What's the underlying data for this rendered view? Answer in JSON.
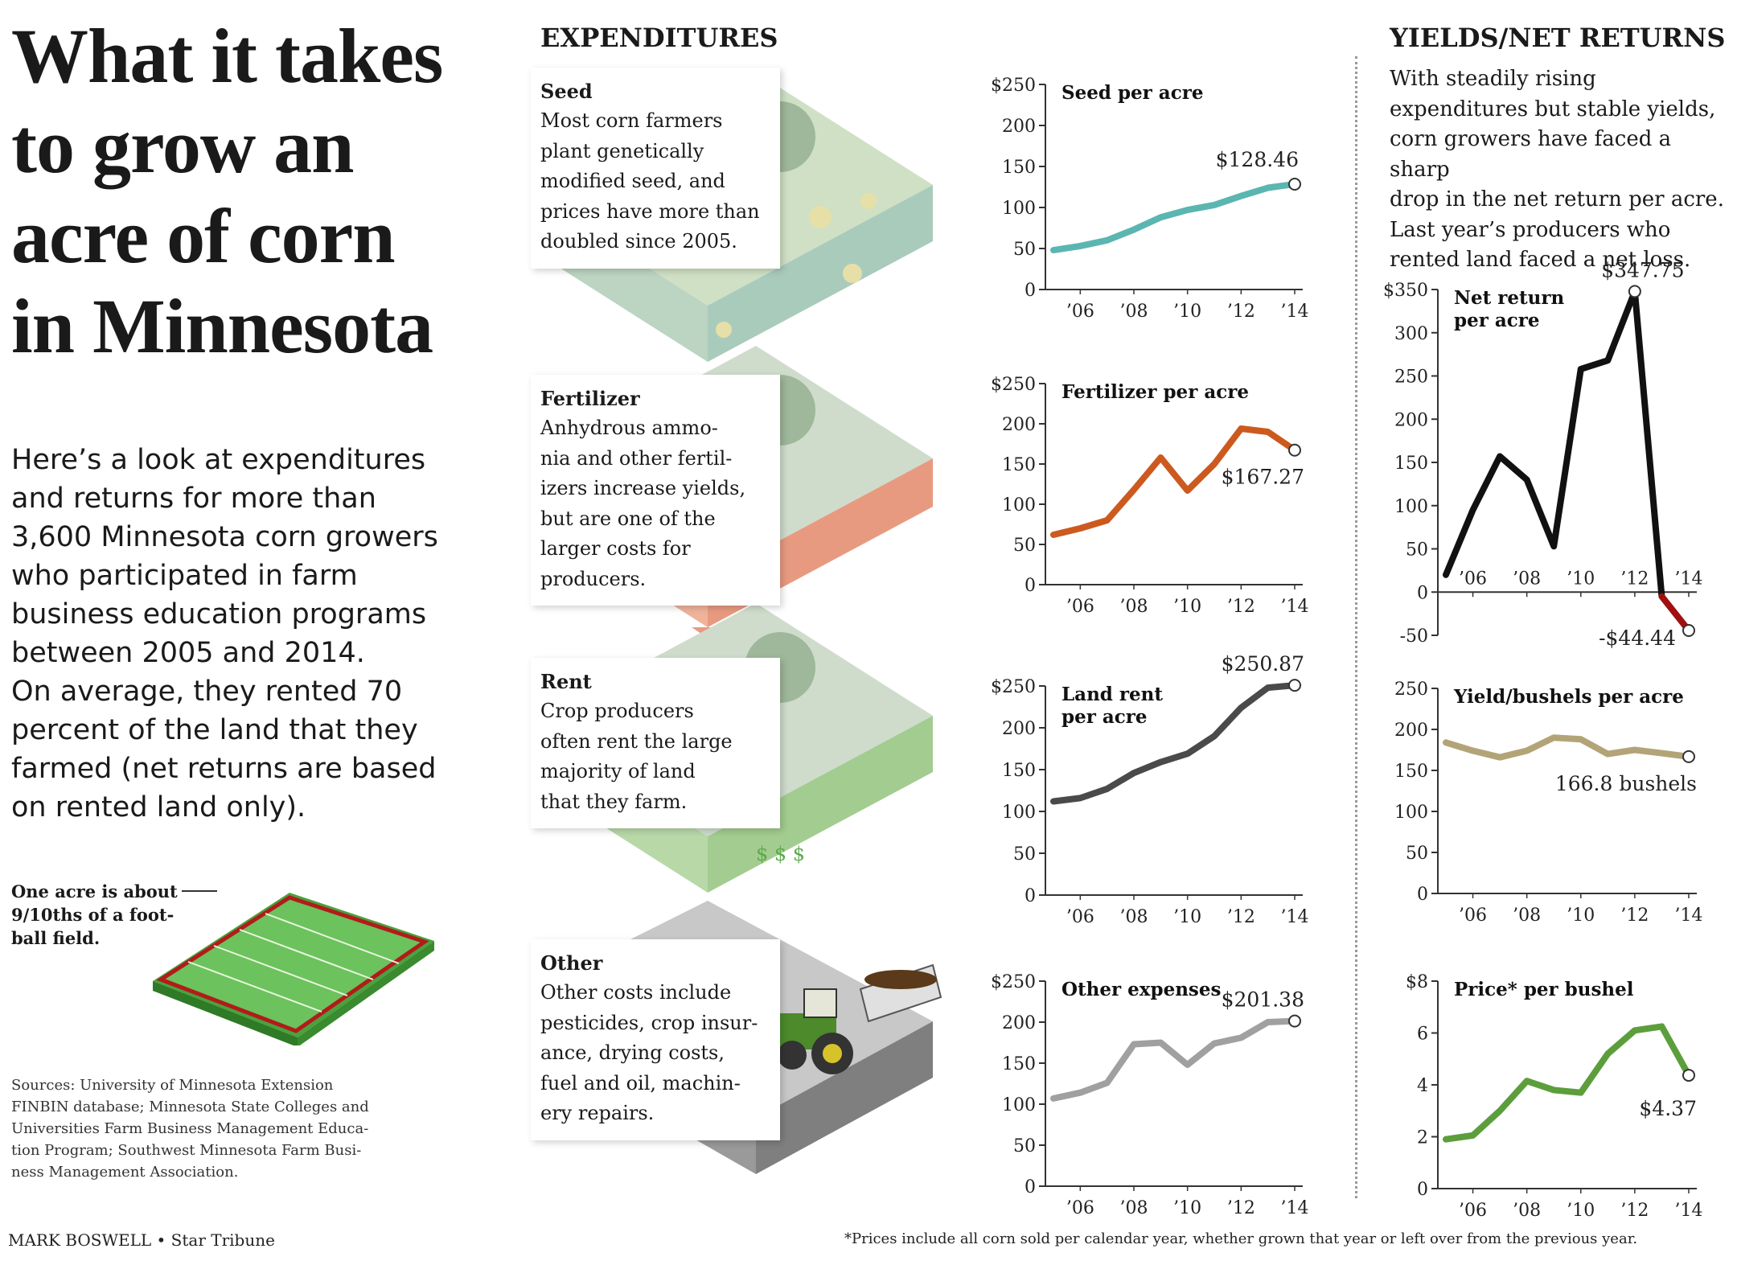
{
  "headline": [
    "What it takes",
    "to grow an",
    "acre of corn",
    "in Minnesota"
  ],
  "intro": [
    "Here’s a look at expenditures",
    "and returns for more than",
    "3,600 Minnesota corn growers",
    "who participated in farm",
    "business education programs",
    "between 2005 and 2014.",
    "On average, they rented 70",
    "percent of the land that they",
    "farmed (net returns are based",
    "on rented land only)."
  ],
  "field_note": [
    "One acre is about",
    "9/10ths of a foot-",
    "ball field."
  ],
  "sources": [
    "Sources: University of Minnesota Extension",
    "FINBIN database; Minnesota State Colleges and",
    "Universities Farm Business Management Educa-",
    "tion Program; Southwest Minnesota Farm Busi-",
    "ness Management Association."
  ],
  "credit": "MARK BOSWELL • Star Tribune",
  "footnote": "*Prices include all corn sold per calendar year, whether grown that year or left over from the previous year.",
  "expenditures": {
    "heading": "EXPENDITURES",
    "items": [
      {
        "title": "Seed",
        "lines": [
          "Most corn farmers",
          "plant genetically",
          "modified seed, and",
          "prices have more than",
          "doubled since 2005."
        ]
      },
      {
        "title": "Fertilizer",
        "lines": [
          " Anhydrous ammo-",
          "nia and other fertil-",
          "izers increase yields,",
          "but are one of the",
          "larger costs for",
          "producers."
        ]
      },
      {
        "title": "Rent",
        "lines": [
          "Crop producers",
          "often rent the large",
          "majority of land",
          "that they farm."
        ]
      },
      {
        "title": "Other",
        "lines": [
          "Other costs include",
          "pesticides, crop insur-",
          "ance, drying costs,",
          "fuel and oil, machin-",
          "ery repairs."
        ]
      }
    ]
  },
  "yields": {
    "heading": "YIELDS/NET RETURNS",
    "lines": [
      "With steadily rising",
      "expenditures but stable yields,",
      "corn growers have faced a sharp",
      "drop in the net return per acre.",
      "Last year’s producers who",
      "rented land faced a net loss."
    ]
  },
  "colors": {
    "seed": "#5bb5b0",
    "fertilizer": "#cc5a1e",
    "rent": "#4a4a4a",
    "other": "#a0a0a0",
    "net_return": "#111111",
    "net_loss": "#a01010",
    "yield": "#b3a478",
    "price": "#5c9e3c"
  },
  "chart_data": [
    {
      "type": "line",
      "title": "Seed per acre",
      "x": [
        2005,
        2006,
        2007,
        2008,
        2009,
        2010,
        2011,
        2012,
        2013,
        2014
      ],
      "y": [
        48,
        53,
        60,
        73,
        88,
        97,
        103,
        114,
        124,
        128.46
      ],
      "ylim": [
        0,
        250
      ],
      "yticks": [
        "$250",
        "200",
        "150",
        "100",
        "50",
        "0"
      ],
      "xticks": [
        "’06",
        "’08",
        "’10",
        "’12",
        "’14"
      ],
      "end_label": "$128.46"
    },
    {
      "type": "line",
      "title": "Fertilizer per acre",
      "x": [
        2005,
        2006,
        2007,
        2008,
        2009,
        2010,
        2011,
        2012,
        2013,
        2014
      ],
      "y": [
        62,
        70,
        80,
        118,
        158,
        117,
        150,
        194,
        190,
        167.27
      ],
      "ylim": [
        0,
        250
      ],
      "yticks": [
        "$250",
        "200",
        "150",
        "100",
        "50",
        "0"
      ],
      "xticks": [
        "’06",
        "’08",
        "’10",
        "’12",
        "’14"
      ],
      "end_label": "$167.27"
    },
    {
      "type": "line",
      "title": "Land rent per acre",
      "title_lines": [
        "Land rent",
        "per acre"
      ],
      "x": [
        2005,
        2006,
        2007,
        2008,
        2009,
        2010,
        2011,
        2012,
        2013,
        2014
      ],
      "y": [
        112,
        116,
        127,
        146,
        159,
        169,
        190,
        224,
        248,
        250.87
      ],
      "ylim": [
        0,
        250
      ],
      "yticks": [
        "$250",
        "200",
        "150",
        "100",
        "50",
        "0"
      ],
      "xticks": [
        "’06",
        "’08",
        "’10",
        "’12",
        "’14"
      ],
      "end_label": "$250.87"
    },
    {
      "type": "line",
      "title": "Other expenses",
      "x": [
        2005,
        2006,
        2007,
        2008,
        2009,
        2010,
        2011,
        2012,
        2013,
        2014
      ],
      "y": [
        107,
        114,
        126,
        173,
        175,
        148,
        174,
        181,
        200,
        201.38
      ],
      "ylim": [
        0,
        250
      ],
      "yticks": [
        "$250",
        "200",
        "150",
        "100",
        "50",
        "0"
      ],
      "xticks": [
        "’06",
        "’08",
        "’10",
        "’12",
        "’14"
      ],
      "end_label": "$201.38"
    },
    {
      "type": "line",
      "title": "Net return per acre",
      "title_lines": [
        "Net return",
        "per acre"
      ],
      "x": [
        2005,
        2006,
        2007,
        2008,
        2009,
        2010,
        2011,
        2012,
        2013,
        2014
      ],
      "y": [
        20,
        95,
        157,
        130,
        53,
        258,
        268,
        347.75,
        -5,
        -44.44
      ],
      "ylim": [
        -50,
        350
      ],
      "yticks": [
        "$350",
        "300",
        "250",
        "200",
        "150",
        "100",
        "50",
        "0",
        "-50"
      ],
      "xticks": [
        "’06",
        "’08",
        "’10",
        "’12",
        "’14"
      ],
      "peak_label": "$347.75",
      "end_label": "-$44.44"
    },
    {
      "type": "line",
      "title": "Yield/bushels per acre",
      "x": [
        2005,
        2006,
        2007,
        2008,
        2009,
        2010,
        2011,
        2012,
        2013,
        2014
      ],
      "y": [
        184,
        174,
        166,
        174,
        190,
        188,
        170,
        175,
        171,
        166.8
      ],
      "ylim": [
        0,
        250
      ],
      "yticks": [
        "250",
        "200",
        "150",
        "100",
        "50",
        "0"
      ],
      "xticks": [
        "’06",
        "’08",
        "’10",
        "’12",
        "’14"
      ],
      "end_label": "166.8 bushels"
    },
    {
      "type": "line",
      "title": "Price* per bushel",
      "x": [
        2005,
        2006,
        2007,
        2008,
        2009,
        2010,
        2011,
        2012,
        2013,
        2014
      ],
      "y": [
        1.9,
        2.05,
        3.0,
        4.15,
        3.8,
        3.7,
        5.2,
        6.1,
        6.25,
        4.37
      ],
      "ylim": [
        0,
        8
      ],
      "yticks": [
        "$8",
        "6",
        "4",
        "2",
        "0"
      ],
      "xticks": [
        "’06",
        "’08",
        "’10",
        "’12",
        "’14"
      ],
      "end_label": "$4.37"
    }
  ]
}
